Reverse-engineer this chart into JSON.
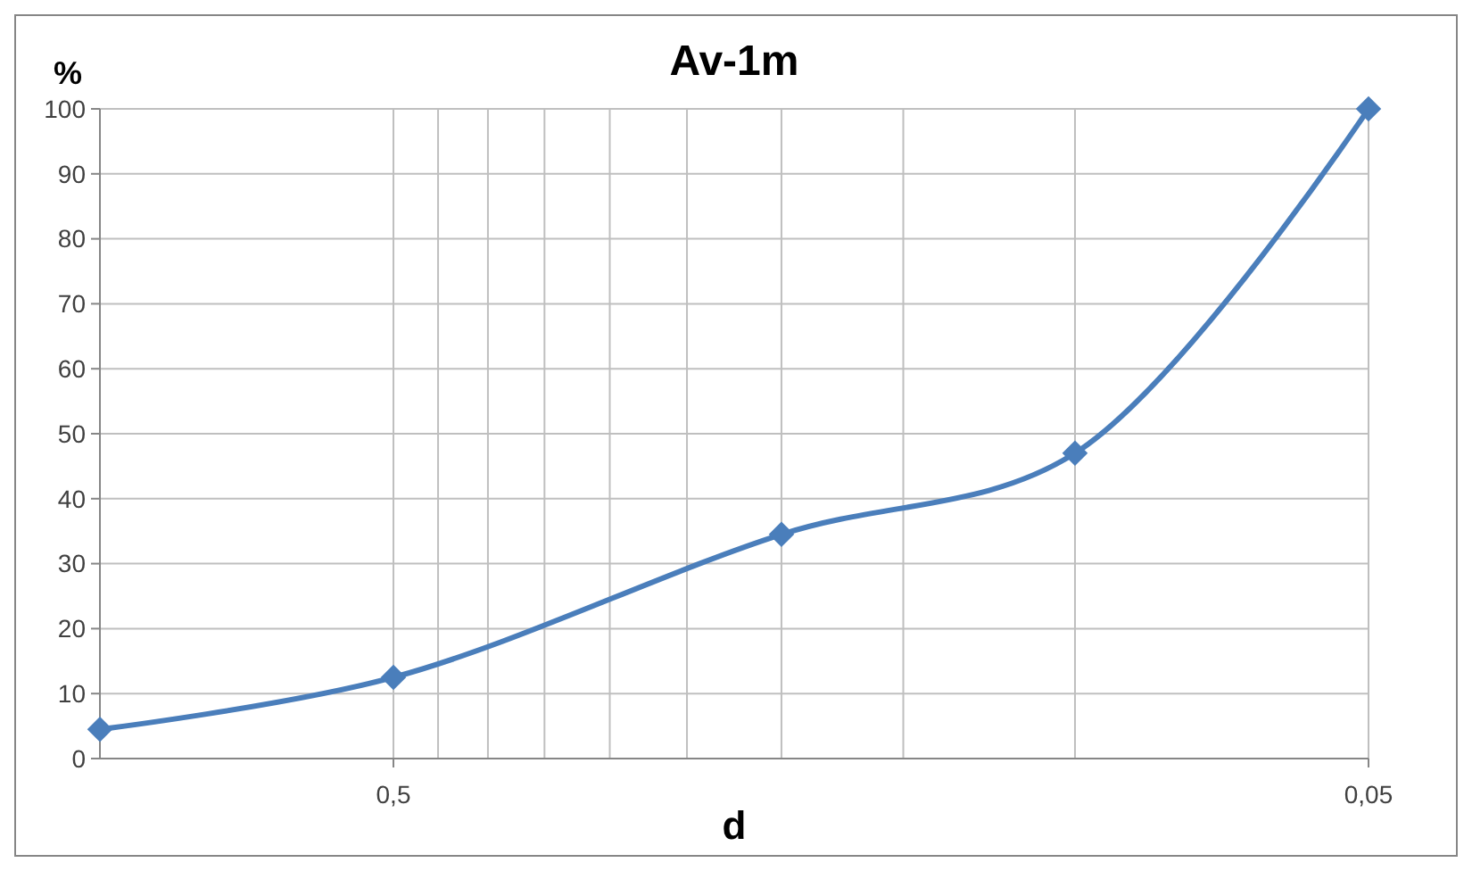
{
  "chart_data": {
    "type": "line",
    "title": "Av-1m",
    "xlabel": "d",
    "ylabel": "%",
    "x": [
      1,
      0.5,
      0.2,
      0.1,
      0.05
    ],
    "series": [
      {
        "color": "#4a7ebb",
        "values": [
          4.5,
          12.5,
          34.5,
          47,
          100
        ]
      }
    ],
    "log": "x",
    "xlim": [
      1,
      0.05
    ],
    "xticks": [
      {
        "value": 0.5,
        "label": "0,5"
      },
      {
        "value": 0.45,
        "label": null
      },
      {
        "value": 0.4,
        "label": null
      },
      {
        "value": 0.35,
        "label": null
      },
      {
        "value": 0.3,
        "label": null
      },
      {
        "value": 0.25,
        "label": null
      },
      {
        "value": 0.2,
        "label": null
      },
      {
        "value": 0.15,
        "label": null
      },
      {
        "value": 0.1,
        "label": null
      },
      {
        "value": 0.05,
        "label": "0,05"
      }
    ],
    "ylim": [
      0,
      100
    ],
    "yticks": [
      0,
      10,
      20,
      30,
      40,
      50,
      60,
      70,
      80,
      90,
      100
    ],
    "grid": true,
    "marker": "diamond",
    "line_style": "solid"
  }
}
